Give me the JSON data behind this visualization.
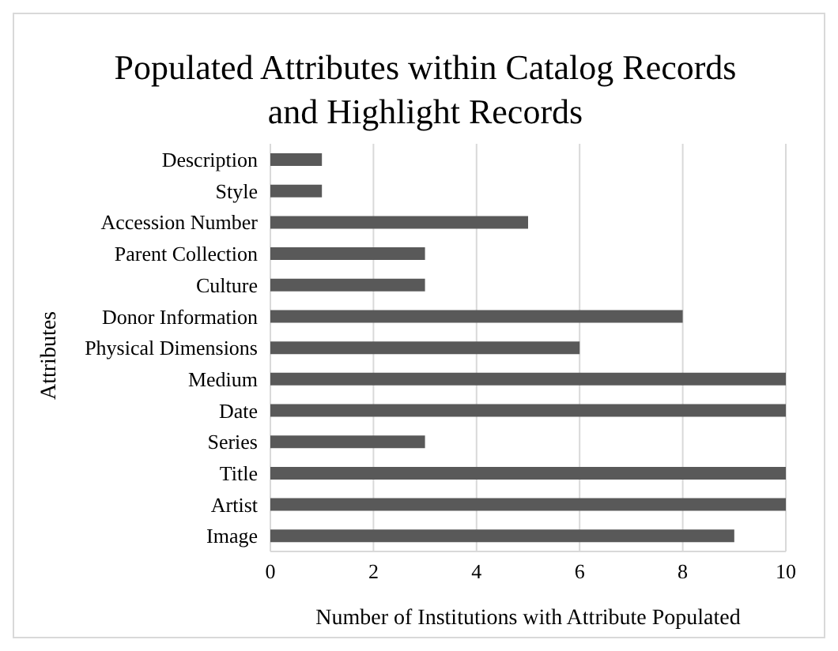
{
  "chart_data": {
    "type": "bar",
    "orientation": "horizontal",
    "title": "Populated Attributes within Catalog Records and Highlight Records",
    "xlabel": "Number of Institutions with Attribute Populated",
    "ylabel": "Attributes",
    "categories": [
      "Description",
      "Style",
      "Accession Number",
      "Parent Collection",
      "Culture",
      "Donor Information",
      "Physical Dimensions",
      "Medium",
      "Date",
      "Series",
      "Title",
      "Artist",
      "Image"
    ],
    "values": [
      1,
      1,
      5,
      3,
      3,
      8,
      6,
      10,
      10,
      3,
      10,
      10,
      9
    ],
    "color": "#595959",
    "xlim": [
      0,
      10
    ],
    "xticks": [
      0,
      2,
      4,
      6,
      8,
      10
    ],
    "grid": "x",
    "legend": false
  }
}
